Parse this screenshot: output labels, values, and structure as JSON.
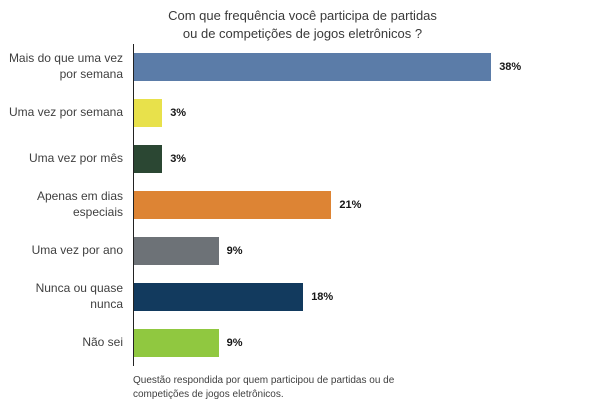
{
  "chart_data": {
    "type": "bar",
    "orientation": "horizontal",
    "title": "Com que frequência você participa de partidas\nou de competições de jogos eletrônicos ?",
    "categories": [
      "Mais do que uma vez por semana",
      "Uma vez por semana",
      "Uma vez por mês",
      "Apenas em dias especiais",
      "Uma vez por ano",
      "Nunca ou quase nunca",
      "Não sei"
    ],
    "values": [
      38,
      3,
      3,
      21,
      9,
      18,
      9
    ],
    "value_labels": [
      "38%",
      "3%",
      "3%",
      "21%",
      "9%",
      "18%",
      "9%"
    ],
    "colors": [
      "#5b7ca8",
      "#e8e14b",
      "#2b4733",
      "#dd8434",
      "#6d7277",
      "#123a5e",
      "#90c840"
    ],
    "xlim": [
      0,
      40
    ],
    "grid": false,
    "legend": "none",
    "footnote": "Questão respondida por quem participou de partidas ou de\ncompetições de jogos eletrônicos."
  }
}
